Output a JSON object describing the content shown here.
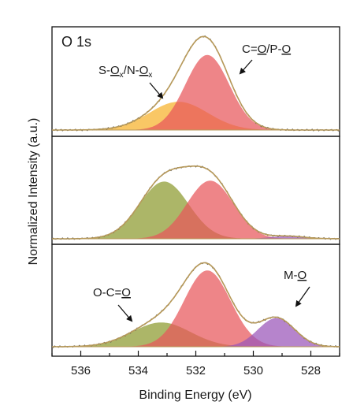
{
  "chart_data": {
    "type": "area",
    "description_title": "O 1s",
    "xlabel": "Binding Energy (eV)",
    "ylabel": "Normalized Intensity (a.u.)",
    "xlim": [
      537,
      527
    ],
    "x_reversed": true,
    "x_ticks": [
      536,
      534,
      532,
      530,
      528
    ],
    "x_tick_labels": [
      "536",
      "534",
      "532",
      "530",
      "528"
    ],
    "y_ticks_shown": false,
    "colors": {
      "envelope": "#b89a5a",
      "data": "#555555",
      "c_o_p_o": "#e8565a",
      "s_ox_n_ox": "#f6b12a",
      "o_c_o": "#8c9a2e",
      "m_o": "#9a55b8"
    },
    "panels": [
      {
        "panel": "top",
        "components": [
          {
            "label": "S-Ox/N-Ox",
            "center": 532.6,
            "fwhm": 2.4,
            "rel_height": 0.32,
            "color_key": "s_ox_n_ox"
          },
          {
            "label": "C=O/P-O",
            "center": 531.6,
            "fwhm": 1.8,
            "rel_height": 0.85,
            "color_key": "c_o_p_o"
          }
        ]
      },
      {
        "panel": "middle",
        "components": [
          {
            "label": "O-C=O",
            "center": 533.1,
            "fwhm": 2.0,
            "rel_height": 0.66,
            "color_key": "o_c_o"
          },
          {
            "label": "C=O/P-O",
            "center": 531.5,
            "fwhm": 1.9,
            "rel_height": 0.67,
            "color_key": "c_o_p_o"
          },
          {
            "label": "M-O",
            "center": 528.8,
            "fwhm": 1.4,
            "rel_height": 0.03,
            "color_key": "m_o"
          }
        ]
      },
      {
        "panel": "bottom",
        "components": [
          {
            "label": "O-C=O",
            "center": 533.2,
            "fwhm": 2.4,
            "rel_height": 0.28,
            "color_key": "o_c_o"
          },
          {
            "label": "C=O/P-O",
            "center": 531.6,
            "fwhm": 1.9,
            "rel_height": 0.88,
            "color_key": "c_o_p_o"
          },
          {
            "label": "M-O",
            "center": 529.2,
            "fwhm": 1.5,
            "rel_height": 0.33,
            "color_key": "m_o"
          }
        ]
      }
    ]
  },
  "annotations": {
    "panel_title": "O 1s",
    "c_o_p_o": {
      "t1": "C=",
      "u1": "O",
      "t2": "/P-",
      "u2": "O"
    },
    "s_ox": {
      "t1": "S-",
      "u1": "O",
      "s1": "x",
      "t2": "/N-",
      "u2": "O",
      "s2": "x"
    },
    "o_c_o": {
      "t1": "O-C=",
      "u1": "O"
    },
    "m_o": {
      "t1": "M-",
      "u1": "O"
    }
  }
}
